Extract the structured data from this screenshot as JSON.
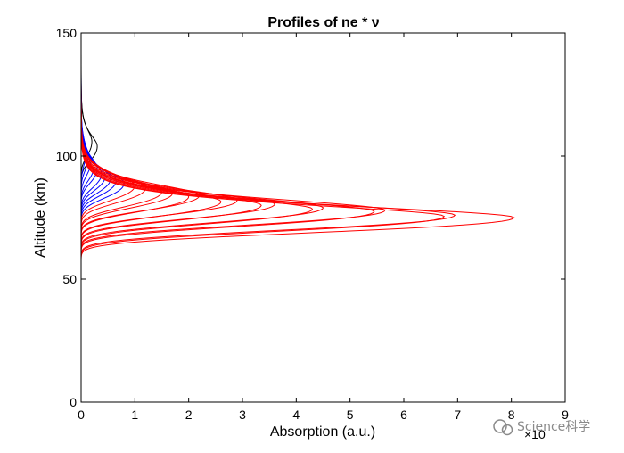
{
  "chart_data": {
    "type": "line",
    "title": "Profiles of ne * ν",
    "xlabel": "Absorption (a.u.)",
    "ylabel": "Altitude (km)",
    "x_exponent_label": "×10",
    "xlim": [
      0,
      9
    ],
    "ylim": [
      0,
      150
    ],
    "xticks": [
      0,
      1,
      2,
      3,
      4,
      5,
      6,
      7,
      8,
      9
    ],
    "yticks": [
      0,
      50,
      100,
      150
    ],
    "grid": false,
    "legend": "none",
    "series": [
      {
        "color": "#ff0000",
        "profiles": [
          {
            "peak_x": 8.05,
            "peak_alt": 75
          },
          {
            "peak_x": 6.95,
            "peak_alt": 76
          },
          {
            "peak_x": 6.75,
            "peak_alt": 75.5
          },
          {
            "peak_x": 5.65,
            "peak_alt": 78
          },
          {
            "peak_x": 5.45,
            "peak_alt": 77.5
          },
          {
            "peak_x": 4.5,
            "peak_alt": 79
          },
          {
            "peak_x": 4.3,
            "peak_alt": 78.5
          },
          {
            "peak_x": 3.6,
            "peak_alt": 80.5
          },
          {
            "peak_x": 3.35,
            "peak_alt": 80
          },
          {
            "peak_x": 2.9,
            "peak_alt": 82
          },
          {
            "peak_x": 2.6,
            "peak_alt": 81.5
          },
          {
            "peak_x": 2.2,
            "peak_alt": 84
          },
          {
            "peak_x": 2.0,
            "peak_alt": 83.5
          },
          {
            "peak_x": 1.7,
            "peak_alt": 85
          },
          {
            "peak_x": 1.5,
            "peak_alt": 85.5
          },
          {
            "peak_x": 1.2,
            "peak_alt": 87
          },
          {
            "peak_x": 1.0,
            "peak_alt": 88
          }
        ]
      },
      {
        "color": "#0000ff",
        "profiles": [
          {
            "peak_x": 0.8,
            "peak_alt": 89
          },
          {
            "peak_x": 0.65,
            "peak_alt": 90
          },
          {
            "peak_x": 0.55,
            "peak_alt": 91
          },
          {
            "peak_x": 0.45,
            "peak_alt": 92
          },
          {
            "peak_x": 0.38,
            "peak_alt": 93
          },
          {
            "peak_x": 0.3,
            "peak_alt": 95
          },
          {
            "peak_x": 0.24,
            "peak_alt": 96
          },
          {
            "peak_x": 0.18,
            "peak_alt": 98
          },
          {
            "peak_x": 0.13,
            "peak_alt": 100
          },
          {
            "peak_x": 0.09,
            "peak_alt": 102
          }
        ]
      },
      {
        "color": "#000000",
        "profiles": [
          {
            "peak_x": 0.3,
            "peak_alt": 104
          },
          {
            "peak_x": 0.2,
            "peak_alt": 106
          }
        ]
      }
    ]
  },
  "watermark": {
    "text": "Science科学",
    "icon": "wechat-icon"
  }
}
